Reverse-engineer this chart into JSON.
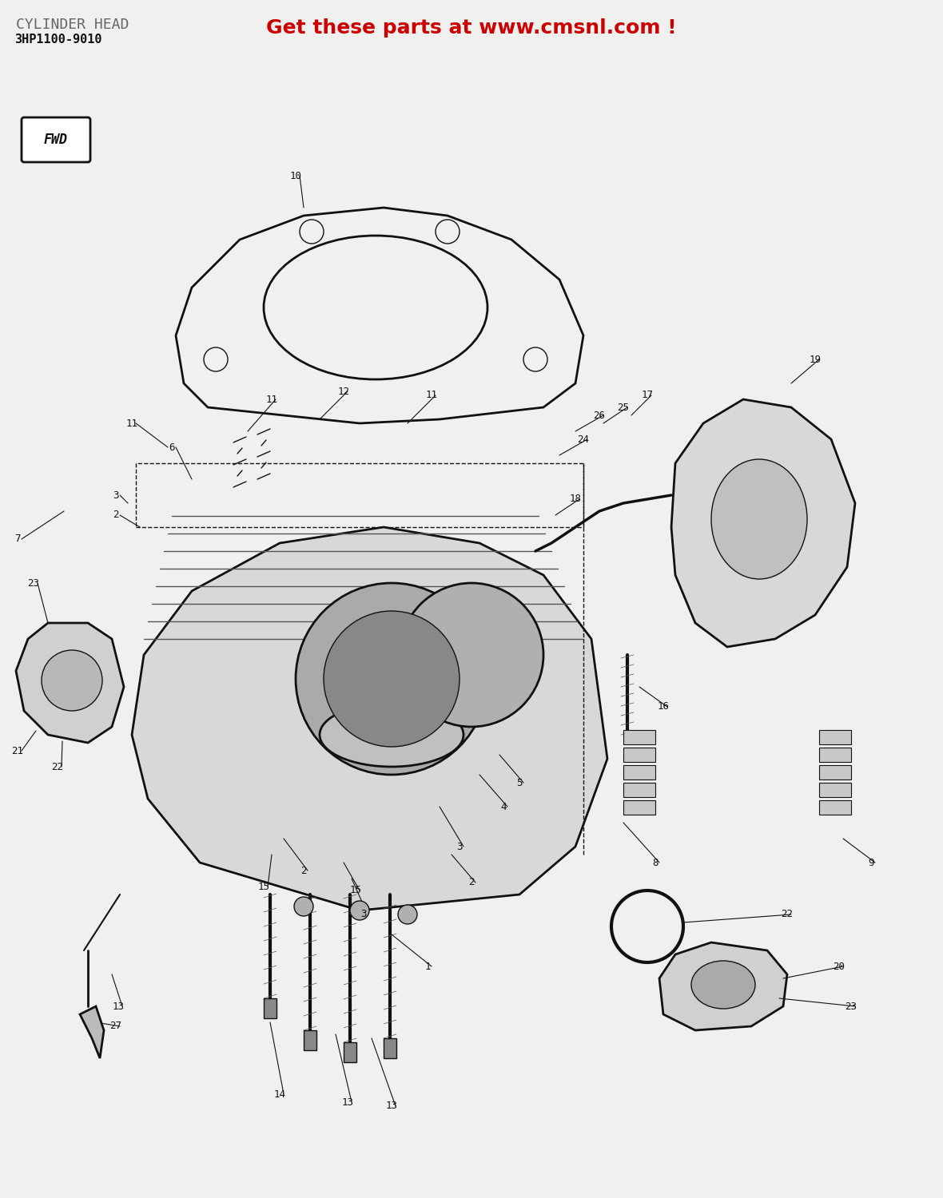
{
  "title": "CYLINDER HEAD",
  "part_number": "3HP1100-9010",
  "watermark": "Get these parts at www.cmsnl.com !",
  "bg_color": "#f0f0ee",
  "title_color": "#666666",
  "watermark_color": "#cc0000",
  "line_color": "#111111",
  "label_color": "#111111",
  "figsize": [
    11.8,
    15.0
  ],
  "dpi": 100
}
